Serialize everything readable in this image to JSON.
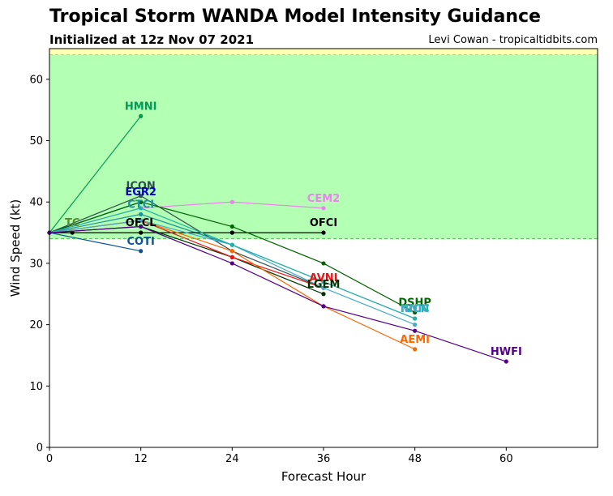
{
  "header": {
    "title": "Tropical Storm WANDA Model Intensity Guidance",
    "subtitle": "Initialized at 12z Nov 07 2021",
    "credit": "Levi Cowan - tropicaltidbits.com"
  },
  "chart_data": {
    "type": "line",
    "xlabel": "Forecast Hour",
    "ylabel": "Wind Speed (kt)",
    "xlim": [
      0,
      72
    ],
    "ylim": [
      0,
      65
    ],
    "xticks": [
      0,
      12,
      24,
      36,
      48,
      60
    ],
    "yticks": [
      0,
      10,
      20,
      30,
      40,
      50,
      60
    ],
    "grid": false,
    "bands": [
      {
        "y0": 34,
        "y1": 64,
        "color": "#b3ffb3",
        "edge": "#55bb55"
      },
      {
        "y0": 64,
        "y1": 65,
        "color": "#ffffb3",
        "edge": "#cccc55"
      }
    ],
    "series": [
      {
        "name": "HMNI",
        "color": "#009955",
        "x": [
          0,
          12
        ],
        "y": [
          35,
          54
        ],
        "label_at": [
          12,
          54
        ]
      },
      {
        "name": "ICON",
        "color": "#2f4f4f",
        "x": [
          0,
          12,
          24,
          36
        ],
        "y": [
          35,
          41,
          32,
          26
        ],
        "label_at": [
          12,
          41
        ]
      },
      {
        "name": "EGR2",
        "color": "#0000cc",
        "x": [
          0,
          12
        ],
        "y": [
          35,
          40
        ],
        "label_at": [
          12,
          40
        ]
      },
      {
        "name": "CEM2",
        "color": "#ee82ee",
        "x": [
          0,
          12,
          24,
          36
        ],
        "y": [
          35,
          39,
          40,
          39
        ],
        "label_at": [
          36,
          39
        ]
      },
      {
        "name": "CTCI",
        "color": "#1e90a0",
        "x": [
          0,
          12,
          24,
          36,
          48
        ],
        "y": [
          35,
          38,
          33,
          27,
          21
        ],
        "label_at": [
          12,
          38
        ]
      },
      {
        "name": "TC",
        "color": "#558b2f",
        "x": [
          0,
          3
        ],
        "y": [
          35,
          35
        ],
        "label_at": [
          3,
          35
        ]
      },
      {
        "name": "OFCL",
        "color": "#000000",
        "x": [
          0,
          3,
          12,
          24,
          36
        ],
        "y": [
          35,
          35,
          35,
          35,
          35
        ],
        "label_at": [
          12,
          35
        ]
      },
      {
        "name": "OFCI",
        "color": "#000000",
        "x": [
          0,
          12,
          24,
          36
        ],
        "y": [
          35,
          35,
          35,
          35
        ],
        "label_at": [
          36,
          35
        ]
      },
      {
        "name": "COTI",
        "color": "#0b5394",
        "x": [
          0,
          12
        ],
        "y": [
          35,
          32
        ],
        "label_at": [
          12,
          32
        ]
      },
      {
        "name": "DSHP",
        "color": "#006400",
        "x": [
          0,
          12,
          24,
          36,
          48
        ],
        "y": [
          35,
          40,
          36,
          30,
          22
        ],
        "label_at": [
          48,
          22
        ]
      },
      {
        "name": "LGEM",
        "color": "#003300",
        "x": [
          0,
          12,
          24,
          36
        ],
        "y": [
          35,
          36,
          31,
          25
        ],
        "label_at": [
          36,
          25
        ]
      },
      {
        "name": "AVNI",
        "color": "#ee1111",
        "x": [
          0,
          12,
          24,
          36
        ],
        "y": [
          35,
          37,
          31,
          26
        ],
        "label_at": [
          36,
          26
        ]
      },
      {
        "name": "AEMI",
        "color": "#ff6600",
        "x": [
          0,
          12,
          24,
          36,
          48
        ],
        "y": [
          35,
          37,
          32,
          23,
          16
        ],
        "label_at": [
          48,
          16
        ]
      },
      {
        "name": "NNIC",
        "color": "#44aacc",
        "x": [
          0,
          12,
          24,
          36,
          48
        ],
        "y": [
          35,
          37,
          33,
          26,
          20
        ],
        "label_at": [
          48,
          20
        ]
      },
      {
        "name": "IVCN",
        "color": "#20b2aa",
        "x": [
          0,
          12,
          24,
          36,
          48
        ],
        "y": [
          35,
          39,
          33,
          27,
          21
        ],
        "label_at": [
          48,
          21
        ]
      },
      {
        "name": "HWFI",
        "color": "#550088",
        "x": [
          0,
          12,
          24,
          36,
          48,
          60
        ],
        "y": [
          35,
          36,
          30,
          23,
          19,
          14
        ],
        "label_at": [
          60,
          14
        ]
      }
    ],
    "labels": [
      {
        "text": "HMNI",
        "color": "#009955",
        "x": 12,
        "y": 54
      },
      {
        "text": "ICON",
        "color": "#2f4f4f",
        "x": 12,
        "y": 41
      },
      {
        "text": "EGR2",
        "color": "#0000cc",
        "x": 12,
        "y": 40
      },
      {
        "text": "CEM2",
        "color": "#ee82ee",
        "x": 36,
        "y": 39
      },
      {
        "text": "CTCI",
        "color": "#1e90a0",
        "x": 12,
        "y": 38
      },
      {
        "text": "TC",
        "color": "#558b2f",
        "x": 3,
        "y": 35
      },
      {
        "text": "OFCL",
        "color": "#000000",
        "x": 12,
        "y": 35
      },
      {
        "text": "OFCI",
        "color": "#000000",
        "x": 36,
        "y": 35
      },
      {
        "text": "COTI",
        "color": "#0b5394",
        "x": 12,
        "y": 32
      },
      {
        "text": "AVNI",
        "color": "#ee1111",
        "x": 36,
        "y": 26
      },
      {
        "text": "LGEM",
        "color": "#003300",
        "x": 36,
        "y": 25
      },
      {
        "text": "DSHP",
        "color": "#006400",
        "x": 48,
        "y": 22
      },
      {
        "text": "IVCN",
        "color": "#20b2aa",
        "x": 48,
        "y": 21
      },
      {
        "text": "NNIC",
        "color": "#44aacc",
        "x": 48,
        "y": 21
      },
      {
        "text": "AEMI",
        "color": "#ff6600",
        "x": 48,
        "y": 16
      },
      {
        "text": "HWFI",
        "color": "#550088",
        "x": 60,
        "y": 14
      }
    ]
  }
}
